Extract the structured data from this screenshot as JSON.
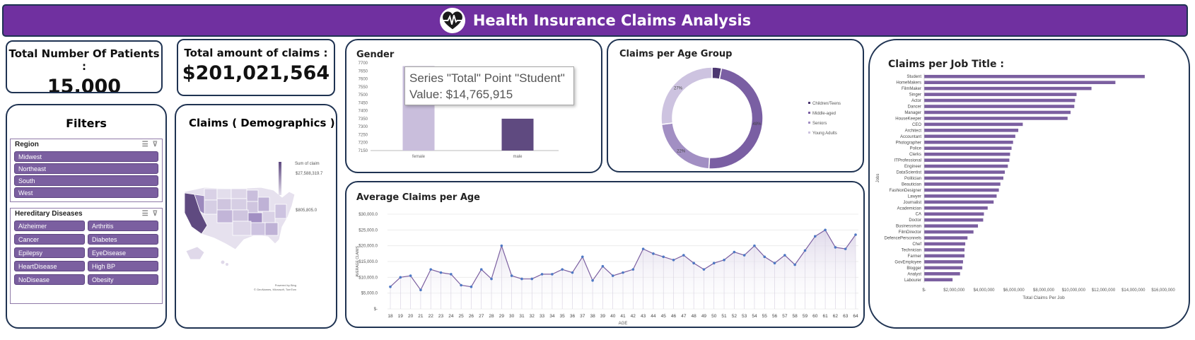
{
  "header": {
    "title": "Health Insurance Claims Analysis",
    "logo_icon": "heartbeat-icon"
  },
  "kpis": {
    "patients": {
      "label": "Total Number Of Patients :",
      "value": "15,000"
    },
    "claims": {
      "label": "Total amount of claims :",
      "value": "$201,021,564"
    }
  },
  "filters": {
    "title": "Filters",
    "region": {
      "label": "Region",
      "items": [
        "Midwest",
        "Northeast",
        "South",
        "West"
      ]
    },
    "diseases": {
      "label": "Hereditary Diseases",
      "items": [
        "Alzheimer",
        "Arthritis",
        "Cancer",
        "Diabetes",
        "Epilepsy",
        "EyeDisease",
        "HeartDisease",
        "High BP",
        "NoDisease",
        "Obesity"
      ]
    }
  },
  "demographics": {
    "title": "Claims ( Demographics )",
    "legend_title": "Sum of claim",
    "legend_max": "$27,588,319.7",
    "legend_min": "$805,805.0",
    "credit_line1": "Powered by Bing",
    "credit_line2": "© GeoNames, Microsoft, TomTom"
  },
  "tooltip": {
    "line1": "Series \"Total\" Point \"Student\"",
    "line2": "Value:  $14,765,915"
  },
  "chart_data": [
    {
      "id": "gender",
      "type": "bar",
      "title": "Gender",
      "categories": [
        "female",
        "male"
      ],
      "values": [
        7680,
        7350
      ],
      "ylim": [
        7150,
        7700
      ],
      "yticks": [
        "7700",
        "7650",
        "7600",
        "7550",
        "7500",
        "7450",
        "7400",
        "7350",
        "7300",
        "7250",
        "7200",
        "7150"
      ],
      "colors": [
        "#c9bedc",
        "#5f4a80"
      ]
    },
    {
      "id": "age_group",
      "type": "pie",
      "title": "Claims per Age Group",
      "labels": [
        "Children/Teens",
        "Middle-aged",
        "Seniors",
        "Young Adults"
      ],
      "values": [
        3,
        48,
        22,
        27
      ],
      "data_labels": [
        "",
        "48%",
        "22%",
        "27%"
      ],
      "colors": [
        "#4b3670",
        "#7a5fa3",
        "#a28fc3",
        "#cdc3e0"
      ]
    },
    {
      "id": "avg_age",
      "type": "line",
      "title": "Average Claims per Age",
      "xlabel": "AGE",
      "ylabel": "AVERAGE CLAIMS",
      "ylim": [
        0,
        30000
      ],
      "yticks": [
        "$-",
        "$5,000.0",
        "$10,000.0",
        "$15,000.0",
        "$20,000.0",
        "$25,000.0",
        "$30,000.0"
      ],
      "x": [
        18,
        19,
        20,
        21,
        22,
        23,
        24,
        25,
        26,
        27,
        28,
        29,
        30,
        31,
        32,
        33,
        34,
        35,
        36,
        37,
        38,
        39,
        40,
        41,
        42,
        43,
        44,
        45,
        46,
        47,
        48,
        49,
        50,
        51,
        52,
        53,
        54,
        55,
        56,
        57,
        58,
        59,
        60,
        61,
        62,
        63,
        64
      ],
      "values": [
        7000,
        10000,
        10500,
        6000,
        12500,
        11500,
        11000,
        7500,
        7000,
        12500,
        9500,
        20000,
        10500,
        9500,
        9500,
        11000,
        11000,
        12500,
        11500,
        16500,
        9000,
        13500,
        10500,
        11500,
        12500,
        19000,
        17500,
        16500,
        15500,
        17000,
        14500,
        12500,
        14500,
        15500,
        18000,
        17000,
        20000,
        16500,
        14500,
        17000,
        14000,
        18500,
        23000,
        25000,
        19500,
        19000,
        23500
      ],
      "color": "#7b5fa0"
    },
    {
      "id": "job",
      "type": "bar",
      "orientation": "horizontal",
      "title": "Claims per Job Title :",
      "xlabel": "Total Claims Per Job",
      "ylabel": "Jobs",
      "xlim": [
        0,
        16000000
      ],
      "xticks": [
        "$-",
        "$2,000,000",
        "$4,000,000",
        "$6,000,000",
        "$8,000,000",
        "$10,000,000",
        "$12,000,000",
        "$14,000,000",
        "$16,000,000"
      ],
      "categories": [
        "Student",
        "HomeMakers",
        "FilmMaker",
        "Singer",
        "Actor",
        "Dancer",
        "Manager",
        "HouseKeeper",
        "CEO",
        "Architect",
        "Accountant",
        "Photographer",
        "Police",
        "Clerks",
        "ITProfessional",
        "Engineer",
        "DataScientist",
        "Politician",
        "Beautician",
        "FashionDesigner",
        "Lawyer",
        "Journalist",
        "Academician",
        "CA",
        "Doctor",
        "Businessman",
        "FilmDirector",
        "DefencePersonnels",
        "Chef",
        "Technician",
        "Farmer",
        "GovEmployee",
        "Blogger",
        "Analyst",
        "Labourer"
      ],
      "values": [
        14765915,
        12800000,
        11200000,
        10200000,
        10100000,
        10050000,
        9800000,
        9600000,
        6600000,
        6300000,
        6100000,
        5950000,
        5850000,
        5750000,
        5700000,
        5600000,
        5400000,
        5300000,
        5100000,
        5000000,
        4850000,
        4650000,
        4250000,
        4000000,
        3950000,
        3600000,
        3300000,
        2900000,
        2750000,
        2700000,
        2700000,
        2600000,
        2550000,
        2400000,
        1900000
      ],
      "color": "#7b5fa0"
    }
  ]
}
